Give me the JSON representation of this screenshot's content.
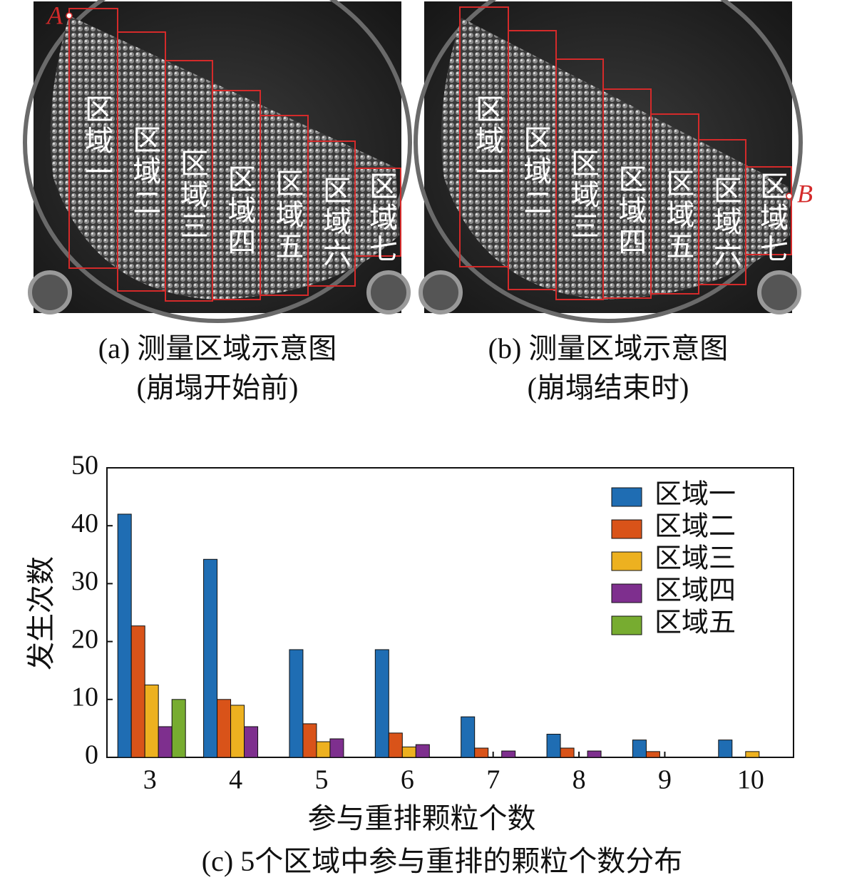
{
  "panels": [
    {
      "caption": "(a) 测量区域示意图",
      "subcaption": "(崩塌开始前)",
      "point": "A",
      "regions": [
        "区域一",
        "区域二",
        "区域三",
        "区域四",
        "区域五",
        "区域六",
        "区域七"
      ]
    },
    {
      "caption": "(b) 测量区域示意图",
      "subcaption": "(崩塌结束时)",
      "point": "B",
      "regions": [
        "区域一",
        "区域二",
        "区域三",
        "区域四",
        "区域五",
        "区域六",
        "区域七"
      ]
    }
  ],
  "chart_data": {
    "type": "bar",
    "caption": "(c) 5个区域中参与重排的颗粒个数分布",
    "x_label": "参与重排颗粒个数",
    "y_label": "发生次数",
    "categories": [
      "3",
      "4",
      "5",
      "6",
      "7",
      "8",
      "9",
      "10"
    ],
    "series": [
      {
        "name": "区域一",
        "color": "#1f6db3",
        "values": [
          42,
          34.2,
          18.6,
          18.6,
          7,
          4,
          3,
          3
        ]
      },
      {
        "name": "区域二",
        "color": "#d95319",
        "values": [
          22.7,
          10,
          5.8,
          4.2,
          1.6,
          1.6,
          1,
          0
        ]
      },
      {
        "name": "区域三",
        "color": "#edb120",
        "values": [
          12.5,
          9,
          2.7,
          1.8,
          0,
          0,
          0,
          1
        ]
      },
      {
        "name": "区域四",
        "color": "#7e2f8e",
        "values": [
          5.3,
          5.3,
          3.2,
          2.2,
          1.1,
          1.1,
          0,
          0
        ]
      },
      {
        "name": "区域五",
        "color": "#77ac30",
        "values": [
          10,
          0,
          0,
          0,
          0,
          0,
          0,
          0
        ]
      }
    ],
    "ylim": [
      0,
      50
    ],
    "yticks": [
      0,
      10,
      20,
      30,
      40,
      50
    ],
    "legend": "upper right"
  }
}
